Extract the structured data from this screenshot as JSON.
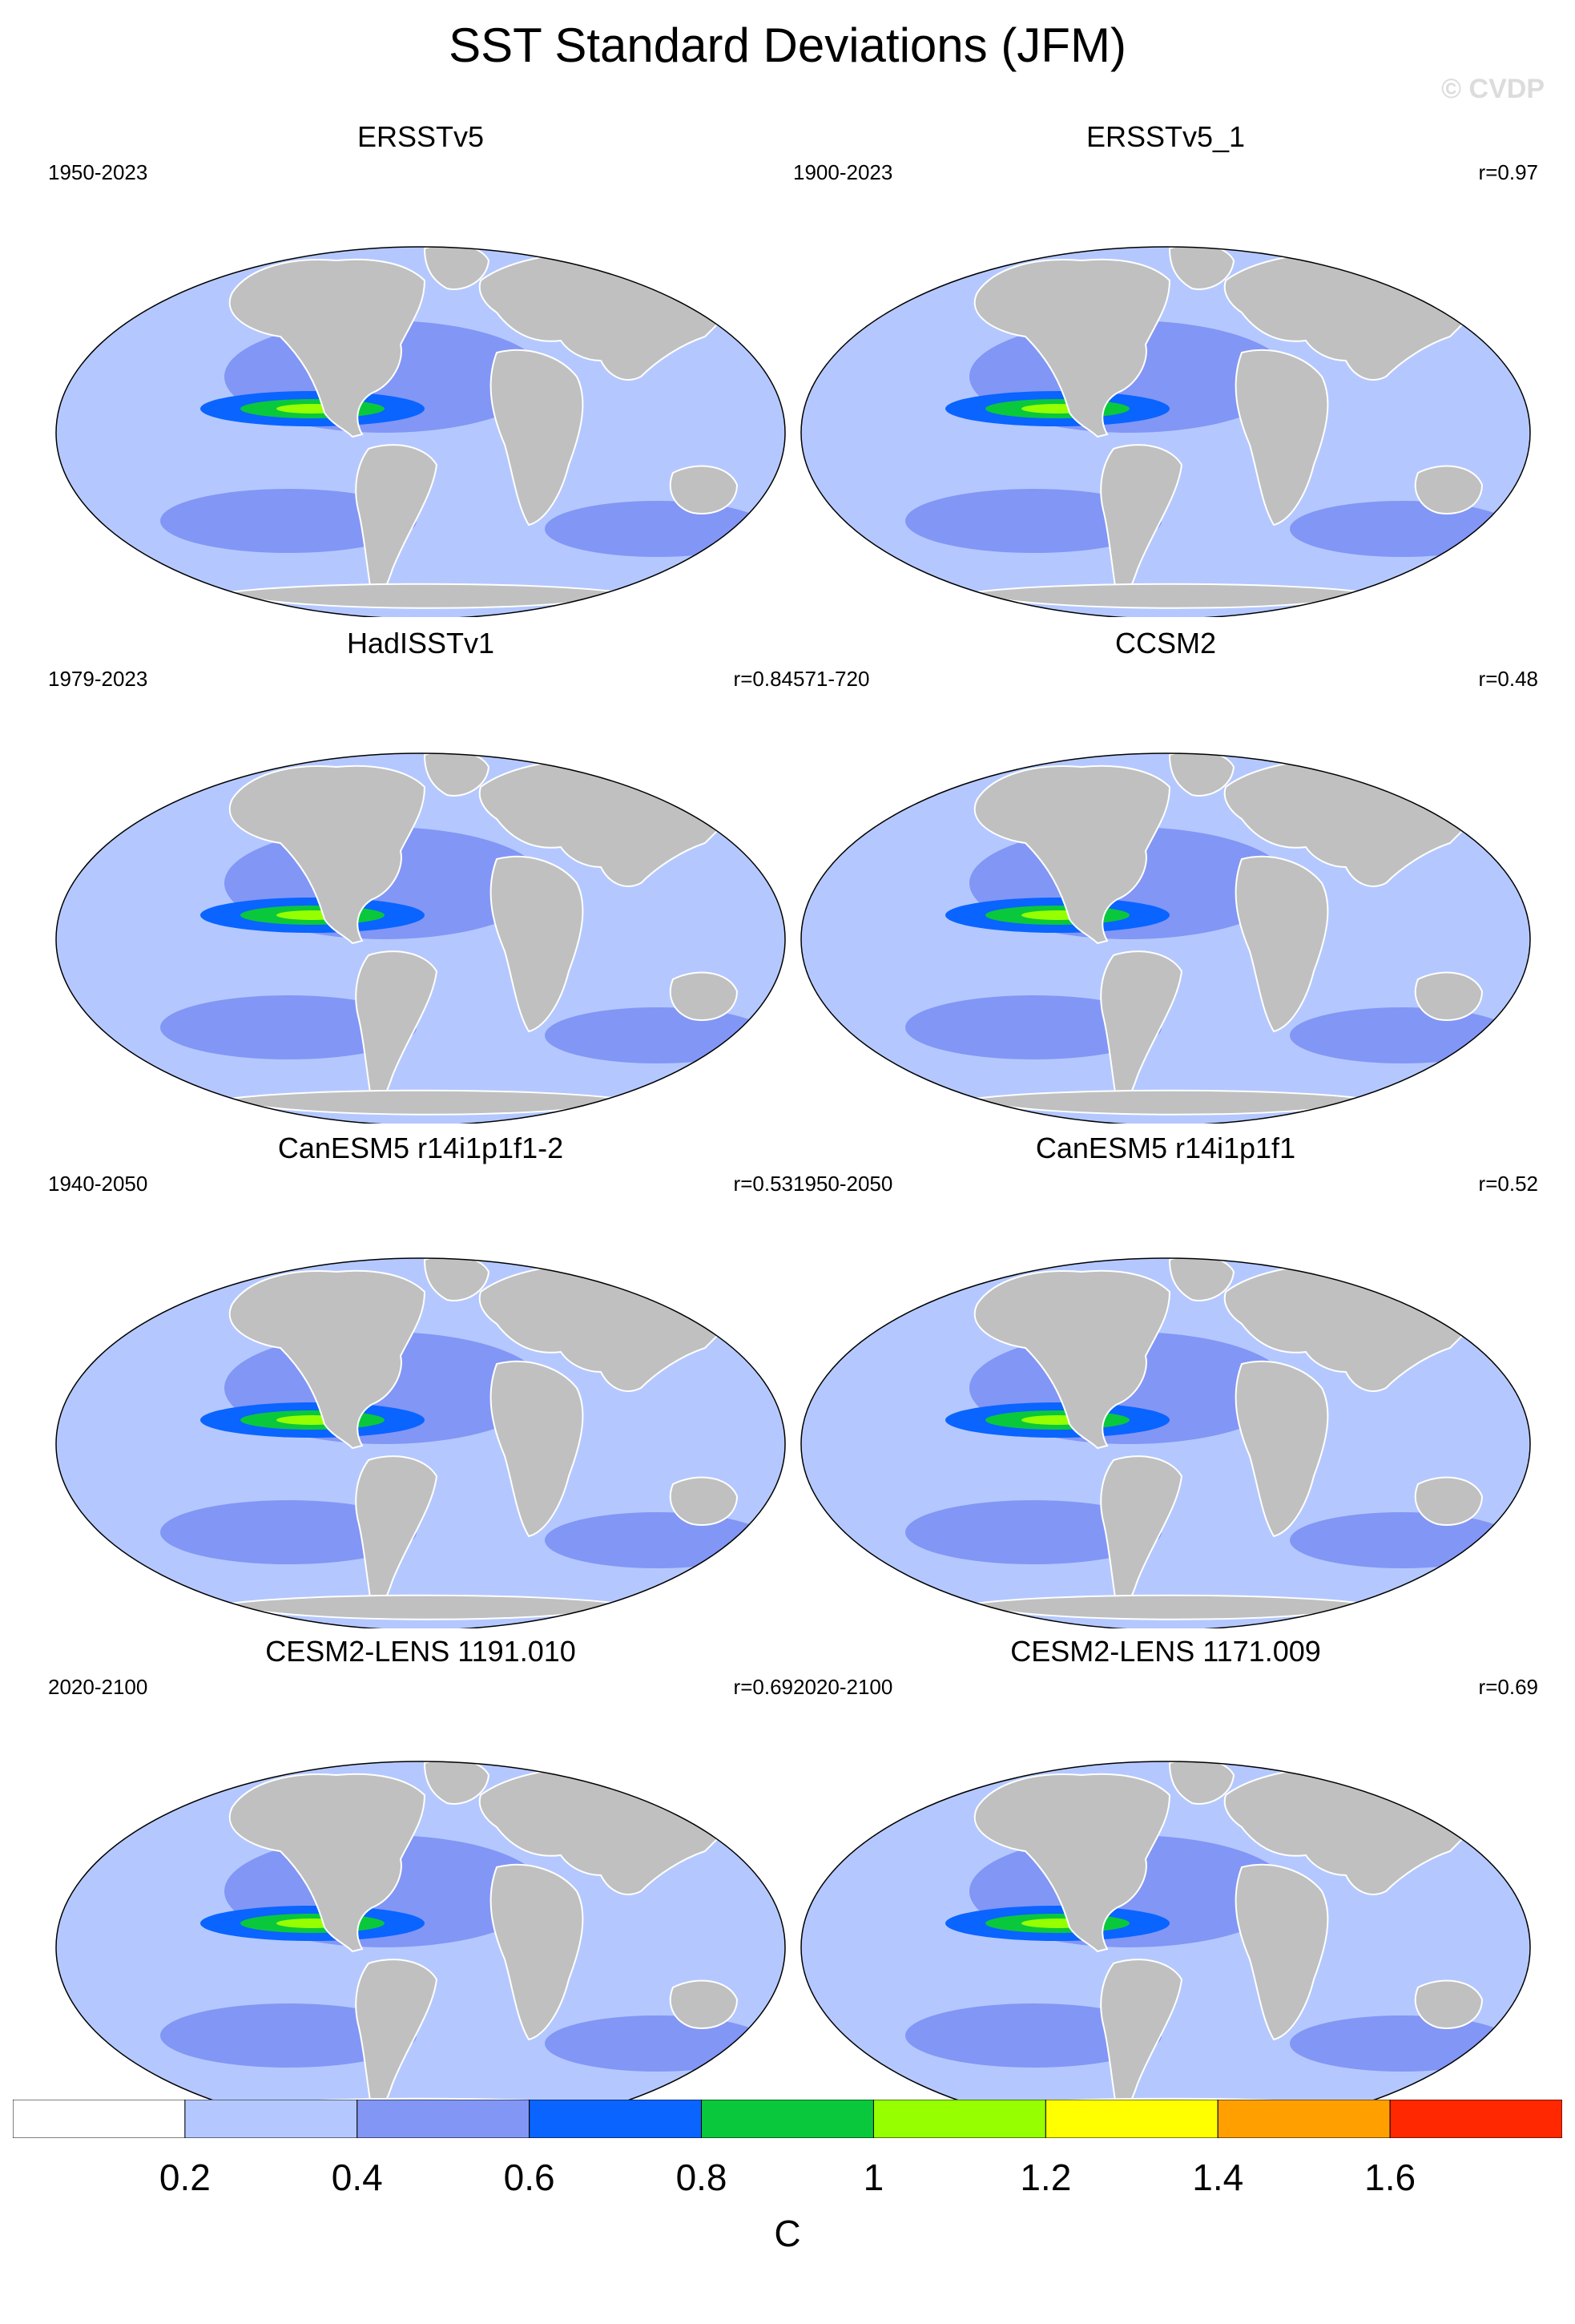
{
  "title": "SST Standard Deviations (JFM)",
  "watermark": "© CVDP",
  "panels": [
    {
      "title": "ERSSTv5",
      "range": "1950-2023",
      "r": ""
    },
    {
      "title": "ERSSTv5_1",
      "range": "1900-2023",
      "r": "r=0.97"
    },
    {
      "title": "HadISSTv1",
      "range": "1979-2023",
      "r": "r=0.84"
    },
    {
      "title": "CCSM2",
      "range": "571-720",
      "r": "r=0.48"
    },
    {
      "title": "CanESM5 r14i1p1f1-2",
      "range": "1940-2050",
      "r": "r=0.53"
    },
    {
      "title": "CanESM5 r14i1p1f1",
      "range": "1950-2050",
      "r": "r=0.52"
    },
    {
      "title": "CESM2-LENS 1191.010",
      "range": "2020-2100",
      "r": "r=0.69"
    },
    {
      "title": "CESM2-LENS 1171.009",
      "range": "2020-2100",
      "r": "r=0.69"
    }
  ],
  "colorbar": {
    "colors": [
      "#ffffff",
      "#b4c8ff",
      "#8296f5",
      "#0a64ff",
      "#0ac83c",
      "#96ff00",
      "#ffff00",
      "#ffa000",
      "#ff2800"
    ],
    "ticks": [
      "0.2",
      "0.4",
      "0.6",
      "0.8",
      "1",
      "1.2",
      "1.4",
      "1.6"
    ],
    "unit": "C"
  },
  "land_color": "#c0c0c0",
  "ocean_base_color": "#b4c8ff"
}
